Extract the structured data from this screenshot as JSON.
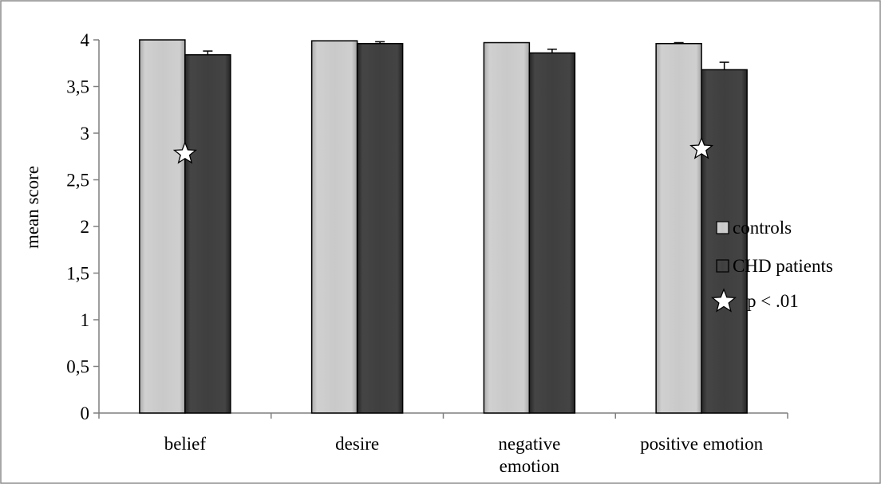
{
  "chart_data": {
    "type": "bar",
    "title": "",
    "xlabel": "",
    "ylabel": "mean score",
    "ylim": [
      0,
      4
    ],
    "yticks": [
      "0",
      "0,5",
      "1",
      "1,5",
      "2",
      "2,5",
      "3",
      "3,5",
      "4"
    ],
    "ytick_values": [
      0,
      0.5,
      1,
      1.5,
      2,
      2.5,
      3,
      3.5,
      4
    ],
    "categories": [
      [
        "belief"
      ],
      [
        "desire"
      ],
      [
        "negative",
        "emotion"
      ],
      [
        "positive emotion"
      ]
    ],
    "series": [
      {
        "name": "controls",
        "values": [
          4.0,
          3.99,
          3.97,
          3.96
        ],
        "errors": [
          0.0,
          0.0,
          0.0,
          0.01
        ],
        "color": "#c8c8c8"
      },
      {
        "name": "CHD patients",
        "values": [
          3.84,
          3.96,
          3.86,
          3.68
        ],
        "errors": [
          0.04,
          0.02,
          0.04,
          0.08
        ],
        "color": "#3f3f3f"
      }
    ],
    "significance": {
      "symbol": "star",
      "label": "p < .01",
      "categories": [
        0,
        3
      ],
      "y": [
        2.78,
        2.83
      ]
    },
    "grid": false,
    "legend_position": "right",
    "colors": {
      "controls": "#c8c8c8",
      "chd": "#3f3f3f",
      "frame": "#8c8c8c"
    }
  }
}
